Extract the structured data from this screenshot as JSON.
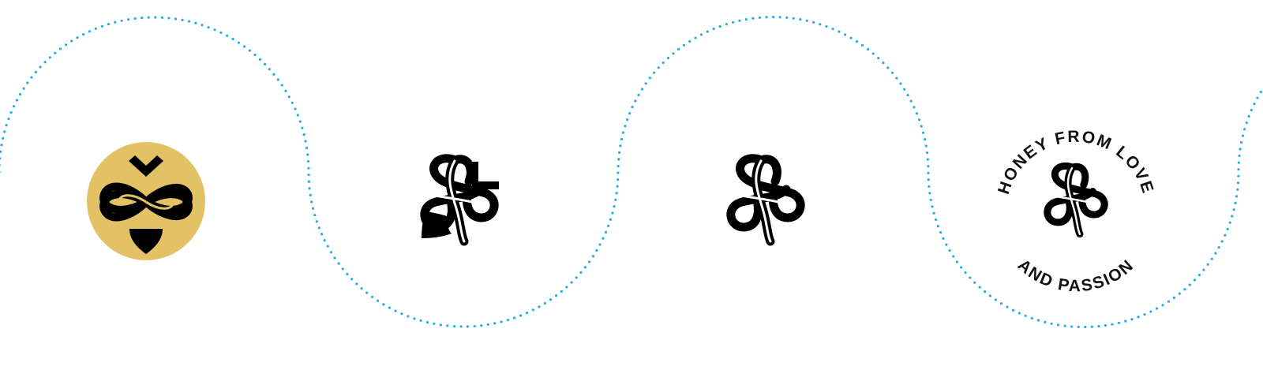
{
  "badge": {
    "top_text": "HONEY FROM LOVE",
    "bottom_text": "AND PASSION"
  }
}
